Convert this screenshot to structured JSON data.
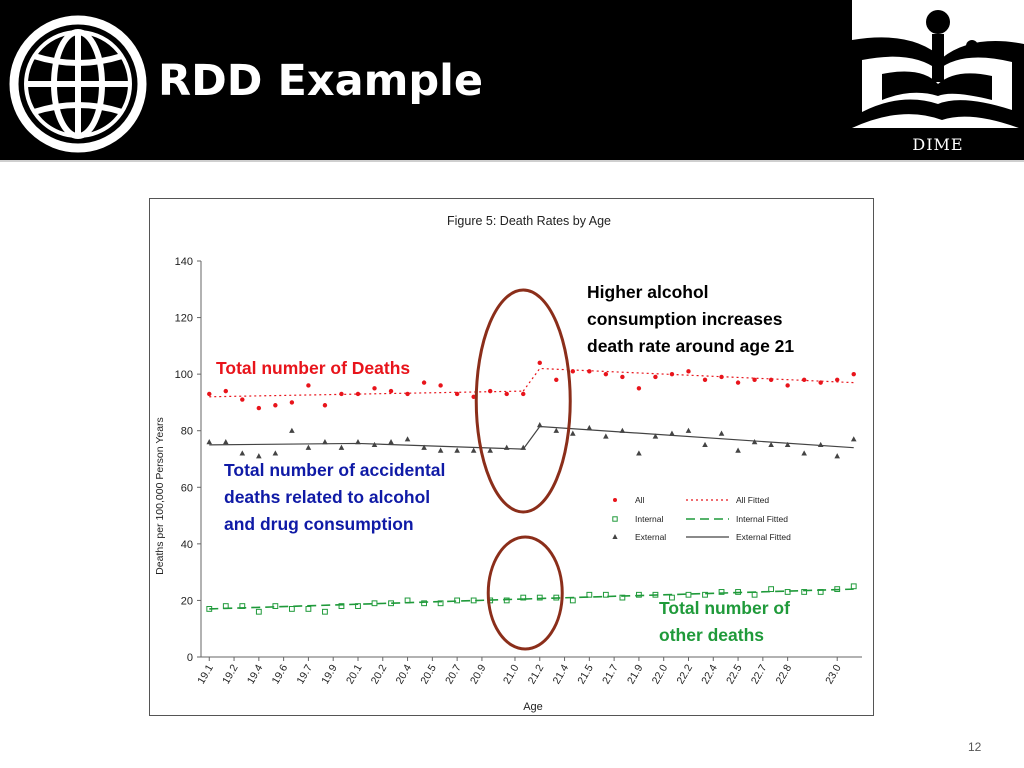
{
  "slide": {
    "title": "RDD Example",
    "logo_right_text": "DIME",
    "page_number": "12"
  },
  "annotations": {
    "total_deaths": "Total number of Deaths",
    "higher_alcohol": "Higher alcohol\nconsumption increases\ndeath rate around age 21",
    "accidental": "Total number of accidental\ndeaths related to alcohol\nand drug consumption",
    "other": "Total number of\nother deaths"
  },
  "colors": {
    "all": "#e8141b",
    "internal": "#1f9a3a",
    "external": "#444444",
    "highlight_ellipse": "#8b2e1a",
    "accidental_text": "#0f1aa6"
  },
  "chart_data": {
    "type": "scatter",
    "title": "Figure 5: Death Rates by Age",
    "xlabel": "Age",
    "ylabel": "Deaths per 100,000 Person Years",
    "xlim": [
      19.05,
      23.05
    ],
    "ylim": [
      0,
      140
    ],
    "yticks": [
      0,
      20,
      40,
      60,
      80,
      100,
      120,
      140
    ],
    "xticks": [
      "19.1",
      "19.2",
      "19.4",
      "19.6",
      "19.7",
      "19.9",
      "20.1",
      "20.2",
      "20.4",
      "20.5",
      "20.7",
      "20.9",
      "21.0",
      "21.2",
      "21.4",
      "21.5",
      "21.7",
      "21.9",
      "22.0",
      "22.2",
      "22.4",
      "22.5",
      "22.7",
      "22.8",
      "23.0"
    ],
    "xtick_values": [
      19.1,
      19.25,
      19.4,
      19.55,
      19.7,
      19.85,
      20.0,
      20.15,
      20.3,
      20.45,
      20.6,
      20.75,
      20.95,
      21.1,
      21.25,
      21.4,
      21.55,
      21.7,
      21.85,
      22.0,
      22.15,
      22.3,
      22.45,
      22.6,
      22.9
    ],
    "grid": false,
    "legend_position": "center-right",
    "cutoff": 21.0,
    "x": [
      19.1,
      19.2,
      19.3,
      19.4,
      19.5,
      19.6,
      19.7,
      19.8,
      19.9,
      20.0,
      20.1,
      20.2,
      20.3,
      20.4,
      20.5,
      20.6,
      20.7,
      20.8,
      20.9,
      21.0,
      21.1,
      21.2,
      21.3,
      21.4,
      21.5,
      21.6,
      21.7,
      21.8,
      21.9,
      22.0,
      22.1,
      22.2,
      22.3,
      22.4,
      22.5,
      22.6,
      22.7,
      22.8,
      22.9,
      23.0
    ],
    "series": [
      {
        "name": "All",
        "marker": "dot",
        "color": "#e8141b",
        "values": [
          93,
          94,
          91,
          88,
          89,
          90,
          96,
          89,
          93,
          93,
          95,
          94,
          93,
          97,
          96,
          93,
          92,
          94,
          93,
          93,
          104,
          98,
          101,
          101,
          100,
          99,
          95,
          99,
          100,
          101,
          98,
          99,
          97,
          98,
          98,
          96,
          98,
          97,
          98,
          100
        ]
      },
      {
        "name": "Internal",
        "marker": "square",
        "color": "#1f9a3a",
        "values": [
          17,
          18,
          18,
          16,
          18,
          17,
          17,
          16,
          18,
          18,
          19,
          19,
          20,
          19,
          19,
          20,
          20,
          20,
          20,
          21,
          21,
          21,
          20,
          22,
          22,
          21,
          22,
          22,
          21,
          22,
          22,
          23,
          23,
          22,
          24,
          23,
          23,
          23,
          24,
          25
        ]
      },
      {
        "name": "External",
        "marker": "triangle",
        "color": "#444444",
        "values": [
          76,
          76,
          72,
          71,
          72,
          80,
          74,
          76,
          74,
          76,
          75,
          76,
          77,
          74,
          73,
          73,
          73,
          73,
          74,
          74,
          82,
          80,
          79,
          81,
          78,
          80,
          72,
          78,
          79,
          80,
          75,
          79,
          73,
          76,
          75,
          75,
          72,
          75,
          71,
          77
        ]
      }
    ],
    "fitted": [
      {
        "name": "All Fitted",
        "style": "dotted",
        "color": "#e8141b",
        "left": [
          [
            19.1,
            92
          ],
          [
            21.0,
            94
          ]
        ],
        "right": [
          [
            21.0,
            94
          ],
          [
            21.1,
            102
          ],
          [
            23.0,
            97
          ]
        ]
      },
      {
        "name": "Internal Fitted",
        "style": "dashed",
        "color": "#1f9a3a",
        "left": [
          [
            19.1,
            17
          ],
          [
            21.0,
            20.5
          ]
        ],
        "right": [
          [
            21.0,
            20.5
          ],
          [
            23.0,
            24
          ]
        ]
      },
      {
        "name": "External Fitted",
        "style": "solid",
        "color": "#444444",
        "left": [
          [
            19.1,
            75
          ],
          [
            20.0,
            75.5
          ],
          [
            21.0,
            73.5
          ]
        ],
        "right": [
          [
            21.0,
            73.5
          ],
          [
            21.1,
            81.5
          ],
          [
            23.0,
            74
          ]
        ]
      }
    ]
  }
}
